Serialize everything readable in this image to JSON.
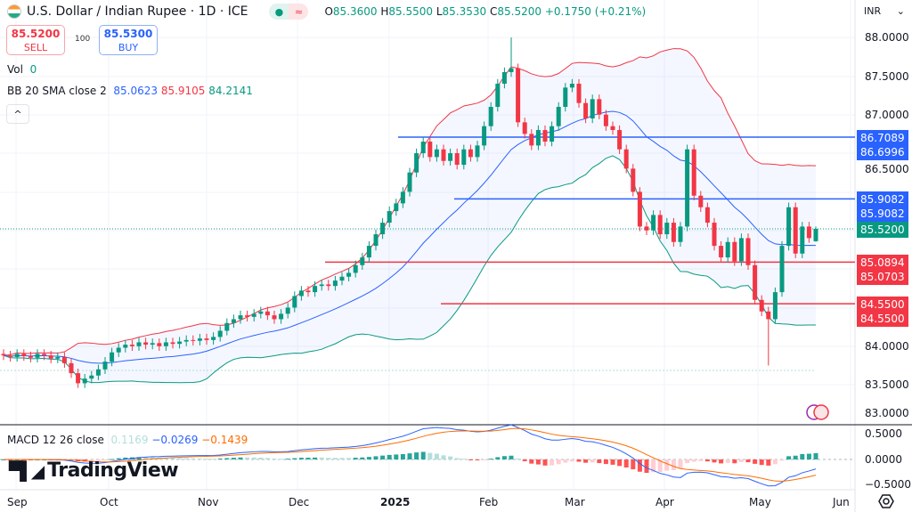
{
  "header": {
    "symbol": "U.S. Dollar / Indian Rupee · 1D · ICE",
    "open_label": "O",
    "open": "85.3600",
    "high_label": "H",
    "high": "85.5500",
    "low_label": "L",
    "low": "85.3530",
    "close_label": "C",
    "close": "85.5200",
    "change": "+0.1750 (+0.21%)"
  },
  "trade": {
    "sell_price": "85.5200",
    "sell_label": "SELL",
    "qty": "100",
    "buy_price": "85.5300",
    "buy_label": "BUY"
  },
  "legend": {
    "vol_label": "Vol",
    "vol_value": "0",
    "bb_label": "BB 20 SMA close 2",
    "bb_basis": "85.0623",
    "bb_upper": "85.9105",
    "bb_lower": "84.2141",
    "macd_label": "MACD 12 26 close",
    "macd_hist": "0.1169",
    "macd_line": "−0.0269",
    "macd_signal": "−0.1439"
  },
  "currency": "INR",
  "brand": "TradingView",
  "price_axis": [
    "88.0000",
    "87.5000",
    "87.0000",
    "86.5000",
    "84.0000",
    "83.5000",
    "83.0000"
  ],
  "macd_axis": [
    "0.5000",
    "0.0000",
    "−0.5000"
  ],
  "time_axis": [
    "Sep",
    "Oct",
    "Nov",
    "Dec",
    "2025",
    "Feb",
    "Mar",
    "Apr",
    "May",
    "Jun"
  ],
  "price_tags": [
    {
      "values": [
        "86.7089",
        "86.6996"
      ],
      "color": "#2962ff"
    },
    {
      "values": [
        "85.9082",
        "85.9082"
      ],
      "color": "#2962ff"
    },
    {
      "values": [
        "85.5200"
      ],
      "color": "#089981"
    },
    {
      "values": [
        "85.0894",
        "85.0703"
      ],
      "color": "#f23645"
    },
    {
      "values": [
        "84.5500",
        "84.5500"
      ],
      "color": "#f23645"
    }
  ],
  "colors": {
    "up": "#089981",
    "down": "#f23645",
    "bb_basis": "#2962ff",
    "bb_upper": "#f23645",
    "bb_lower": "#089981",
    "macd": "#2962ff",
    "signal": "#ff6d00"
  },
  "chart_data": {
    "type": "candlestick",
    "title": "U.S. Dollar / Indian Rupee · 1D · ICE",
    "ylim": [
      83.0,
      88.1
    ],
    "grid": true,
    "closes": [
      83.88,
      83.86,
      83.9,
      83.87,
      83.85,
      83.9,
      83.88,
      83.84,
      83.86,
      83.78,
      83.65,
      83.52,
      83.58,
      83.62,
      83.7,
      83.8,
      83.92,
      83.98,
      84.02,
      84.0,
      84.05,
      84.02,
      84.04,
      84.0,
      84.05,
      84.03,
      84.06,
      84.08,
      84.07,
      84.1,
      84.08,
      84.12,
      84.2,
      84.3,
      84.35,
      84.4,
      84.38,
      84.42,
      84.45,
      84.4,
      84.35,
      84.42,
      84.5,
      84.65,
      84.72,
      84.7,
      84.78,
      84.8,
      84.78,
      84.85,
      84.9,
      84.95,
      85.05,
      85.15,
      85.3,
      85.45,
      85.6,
      85.75,
      85.85,
      86.0,
      86.25,
      86.5,
      86.65,
      86.45,
      86.55,
      86.4,
      86.5,
      86.35,
      86.55,
      86.45,
      86.6,
      86.85,
      87.1,
      87.4,
      87.55,
      87.6,
      86.9,
      86.75,
      86.6,
      86.8,
      86.65,
      86.85,
      87.1,
      87.35,
      87.4,
      87.15,
      86.95,
      87.2,
      87.0,
      86.85,
      86.8,
      86.55,
      86.3,
      86.0,
      85.55,
      85.5,
      85.7,
      85.45,
      85.6,
      85.35,
      85.55,
      86.55,
      85.95,
      85.8,
      85.6,
      85.3,
      85.15,
      85.35,
      85.1,
      85.4,
      85.05,
      84.6,
      84.45,
      84.35,
      84.7,
      85.3,
      85.8,
      85.2,
      85.55,
      85.4,
      85.52
    ],
    "last_candle": {
      "open": 85.36,
      "high": 85.55,
      "low": 85.353,
      "close": 85.52
    },
    "extremes": {
      "max_high": 88.0,
      "min_low": 83.75
    },
    "horizontal_levels": [
      86.7089,
      86.6996,
      85.9082,
      85.0894,
      85.0703,
      84.55
    ],
    "indicators": [
      "BB 20 SMA close 2",
      "MACD 12 26 close"
    ]
  }
}
